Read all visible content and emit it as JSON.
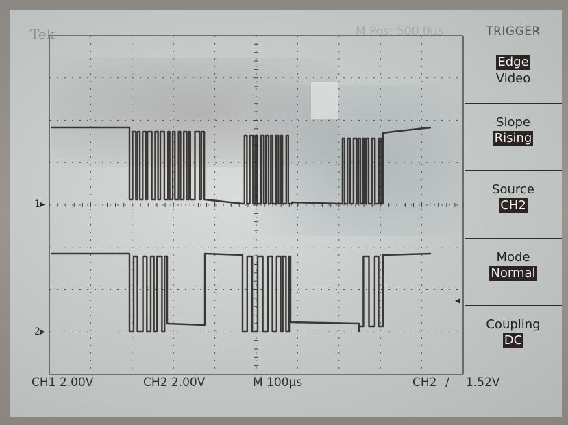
{
  "header": {
    "brand": "Tek",
    "timebase_faint": "M Pos: 500.0µs"
  },
  "trigger_menu": {
    "title": "TRIGGER",
    "items": [
      {
        "label": "",
        "options": [
          "Edge",
          "Video"
        ],
        "selected": "Edge"
      },
      {
        "label": "Slope",
        "value": "Rising"
      },
      {
        "label": "Source",
        "value": "CH2"
      },
      {
        "label": "Mode",
        "value": "Normal"
      },
      {
        "label": "Coupling",
        "value": "DC"
      }
    ]
  },
  "channel_markers": {
    "ch1": "1▸",
    "ch2": "2▸",
    "trigger_level": "◂"
  },
  "status_bar": {
    "ch1_scale": "CH1  2.00V",
    "ch2_scale": "CH2  2.00V",
    "timebase": "M  100µs",
    "trigger_source": "CH2",
    "trigger_slope": "∕",
    "trigger_level": "1.52V"
  },
  "colors": {
    "trace": "#2e2a28",
    "highlight_bg": "#2b2424",
    "grid": "#3a3a3a"
  }
}
